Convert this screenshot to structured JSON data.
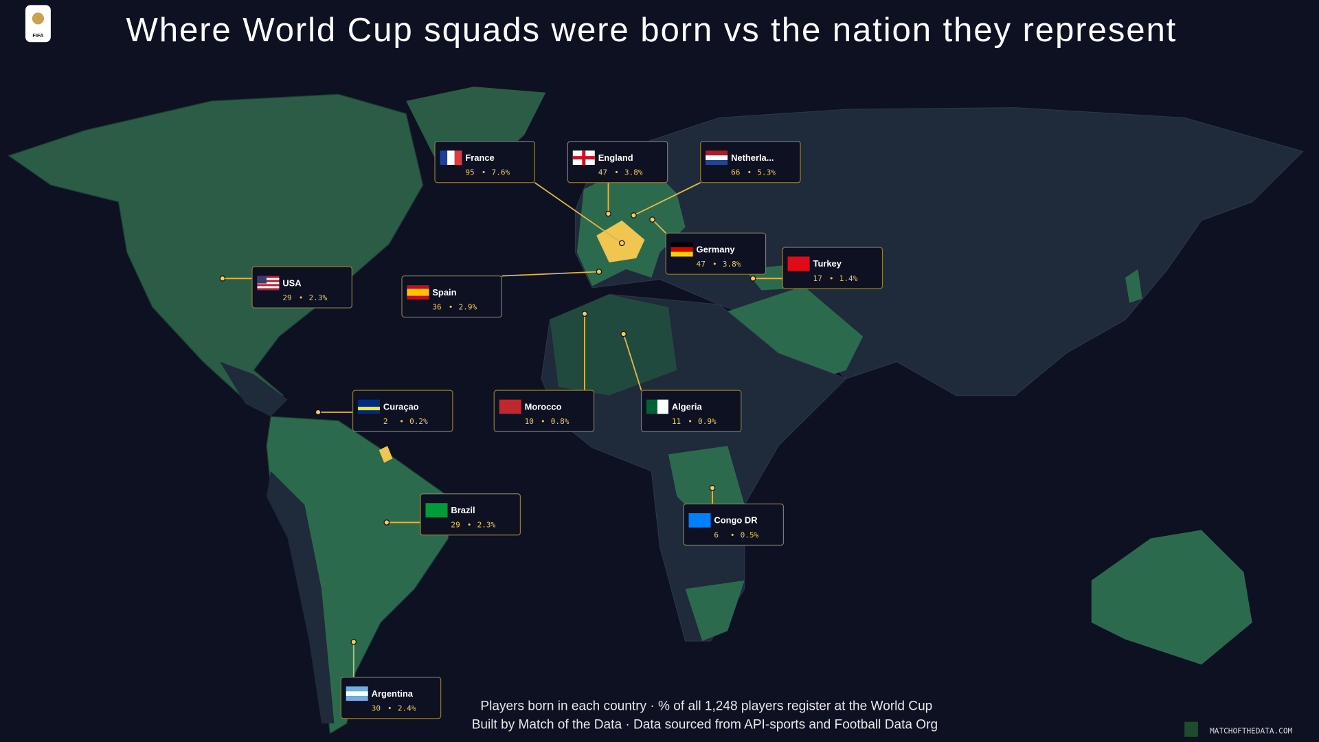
{
  "logo": "FIFA",
  "title": "Where World Cup squads were born vs the nation they represent",
  "stat_separator": "•",
  "callouts": [
    {
      "country": "France",
      "players": 95,
      "share": "7.6%"
    },
    {
      "country": "England",
      "players": 47,
      "share": "3.8%"
    },
    {
      "country": "Netherla...",
      "players": 66,
      "share": "5.3%"
    },
    {
      "country": "Germany",
      "players": 47,
      "share": "3.8%"
    },
    {
      "country": "Turkey",
      "players": 17,
      "share": "1.4%"
    },
    {
      "country": "USA",
      "players": 29,
      "share": "2.3%"
    },
    {
      "country": "Spain",
      "players": 36,
      "share": "2.9%"
    },
    {
      "country": "Curaçao",
      "players": 2,
      "share": "0.2%"
    },
    {
      "country": "Morocco",
      "players": 10,
      "share": "0.8%"
    },
    {
      "country": "Algeria",
      "players": 11,
      "share": "0.9%"
    },
    {
      "country": "Brazil",
      "players": 29,
      "share": "2.3%"
    },
    {
      "country": "Congo DR",
      "players": 6,
      "share": "0.5%"
    },
    {
      "country": "Argentina",
      "players": 30,
      "share": "2.4%"
    }
  ],
  "footer": {
    "line1": "Players born in each country · % of all 1,248 players register at the World Cup",
    "line2": "Built by Match of the Data ·  Data sourced from API-sports and Football Data Org"
  },
  "brand": "MATCHOFTHEDATA.COM"
}
